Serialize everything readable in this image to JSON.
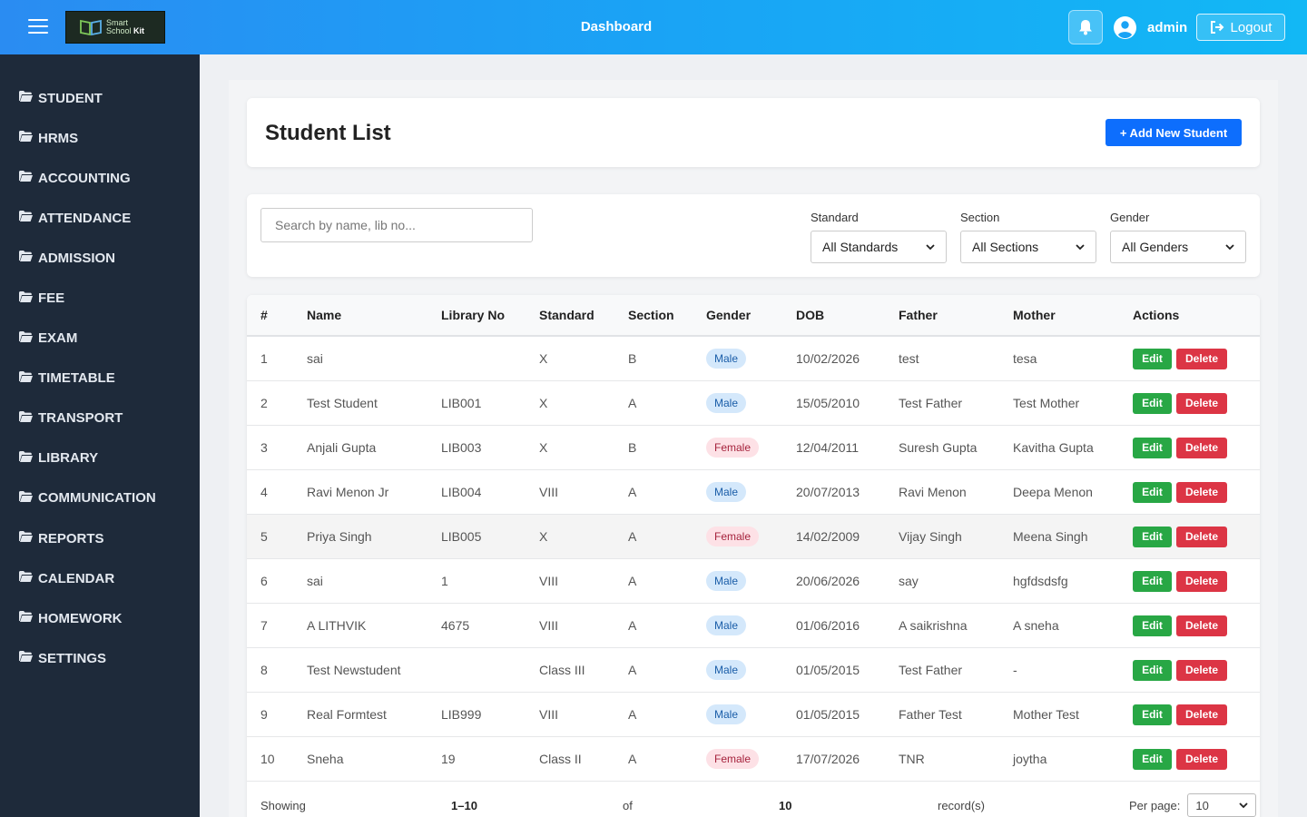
{
  "header": {
    "title": "Dashboard",
    "username": "admin",
    "logout_label": "Logout",
    "logo_line1": "Smart",
    "logo_line2a": "School ",
    "logo_line2b": "Kit"
  },
  "sidebar": {
    "items": [
      {
        "label": "STUDENT"
      },
      {
        "label": "HRMS"
      },
      {
        "label": "ACCOUNTING"
      },
      {
        "label": "ATTENDANCE"
      },
      {
        "label": "ADMISSION"
      },
      {
        "label": "FEE"
      },
      {
        "label": "EXAM"
      },
      {
        "label": "TIMETABLE"
      },
      {
        "label": "TRANSPORT"
      },
      {
        "label": "LIBRARY"
      },
      {
        "label": "COMMUNICATION"
      },
      {
        "label": "REPORTS"
      },
      {
        "label": "CALENDAR"
      },
      {
        "label": "HOMEWORK"
      },
      {
        "label": "SETTINGS"
      }
    ]
  },
  "page": {
    "title": "Student List",
    "add_label": "+ Add New Student"
  },
  "filters": {
    "search_placeholder": "Search by name, lib no...",
    "search_value": "",
    "standard_label": "Standard",
    "standard_value": "All Standards",
    "section_label": "Section",
    "section_value": "All Sections",
    "gender_label": "Gender",
    "gender_value": "All Genders"
  },
  "table": {
    "columns": [
      "#",
      "Name",
      "Library No",
      "Standard",
      "Section",
      "Gender",
      "DOB",
      "Father",
      "Mother",
      "Actions"
    ],
    "edit_label": "Edit",
    "delete_label": "Delete",
    "rows": [
      {
        "num": "1",
        "name": "sai",
        "lib": "",
        "std": "X",
        "sec": "B",
        "gender": "Male",
        "dob": "10/02/2026",
        "father": "test",
        "mother": "tesa"
      },
      {
        "num": "2",
        "name": "Test Student",
        "lib": "LIB001",
        "std": "X",
        "sec": "A",
        "gender": "Male",
        "dob": "15/05/2010",
        "father": "Test Father",
        "mother": "Test Mother"
      },
      {
        "num": "3",
        "name": "Anjali Gupta",
        "lib": "LIB003",
        "std": "X",
        "sec": "B",
        "gender": "Female",
        "dob": "12/04/2011",
        "father": "Suresh Gupta",
        "mother": "Kavitha Gupta"
      },
      {
        "num": "4",
        "name": "Ravi Menon Jr",
        "lib": "LIB004",
        "std": "VIII",
        "sec": "A",
        "gender": "Male",
        "dob": "20/07/2013",
        "father": "Ravi Menon",
        "mother": "Deepa Menon"
      },
      {
        "num": "5",
        "name": "Priya Singh",
        "lib": "LIB005",
        "std": "X",
        "sec": "A",
        "gender": "Female",
        "dob": "14/02/2009",
        "father": "Vijay Singh",
        "mother": "Meena Singh"
      },
      {
        "num": "6",
        "name": "sai",
        "lib": "1",
        "std": "VIII",
        "sec": "A",
        "gender": "Male",
        "dob": "20/06/2026",
        "father": "say",
        "mother": "hgfdsdsfg"
      },
      {
        "num": "7",
        "name": "A LITHVIK",
        "lib": "4675",
        "std": "VIII",
        "sec": "A",
        "gender": "Male",
        "dob": "01/06/2016",
        "father": "A saikrishna",
        "mother": "A sneha"
      },
      {
        "num": "8",
        "name": "Test Newstudent",
        "lib": "",
        "std": "Class III",
        "sec": "A",
        "gender": "Male",
        "dob": "01/05/2015",
        "father": "Test Father",
        "mother": "-"
      },
      {
        "num": "9",
        "name": "Real Formtest",
        "lib": "LIB999",
        "std": "VIII",
        "sec": "A",
        "gender": "Male",
        "dob": "01/05/2015",
        "father": "Father Test",
        "mother": "Mother Test"
      },
      {
        "num": "10",
        "name": "Sneha",
        "lib": "19",
        "std": "Class II",
        "sec": "A",
        "gender": "Female",
        "dob": "17/07/2026",
        "father": "TNR",
        "mother": "joytha"
      }
    ]
  },
  "pagination": {
    "showing_label": "Showing",
    "range": "1–10",
    "of_label": "of",
    "total": "10",
    "records_label": "record(s)",
    "per_page_label": "Per page:",
    "per_page_value": "10"
  }
}
